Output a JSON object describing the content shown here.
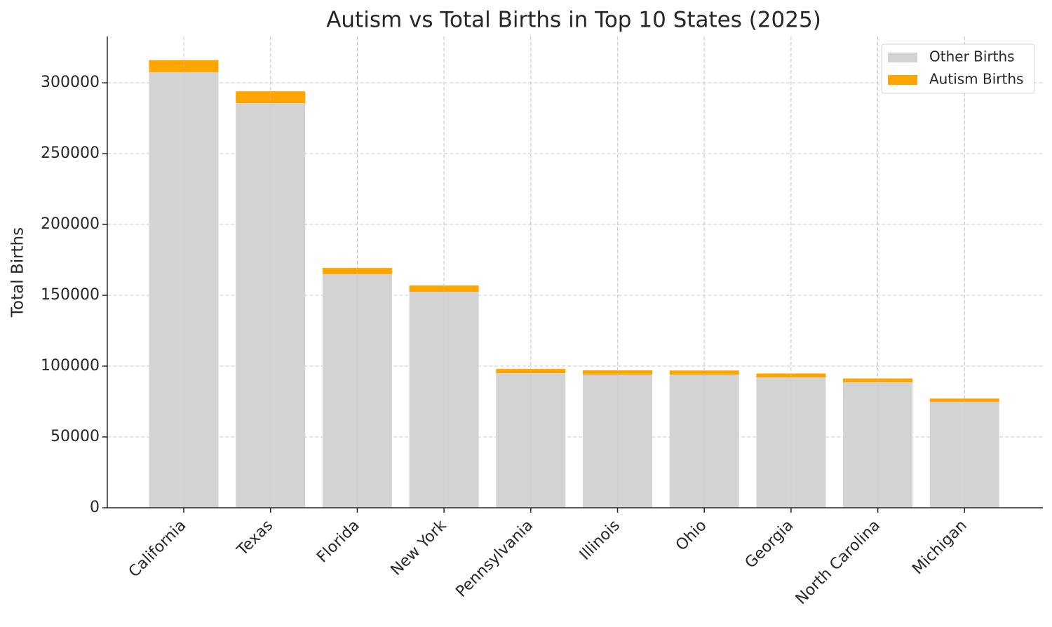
{
  "chart_data": {
    "type": "stacked_bar",
    "title": "Autism vs Total Births in Top 10 States (2025)",
    "y_label": "Total Births",
    "categories": [
      "California",
      "Texas",
      "Florida",
      "New York",
      "Pennsylvania",
      "Illinois",
      "Ohio",
      "Georgia",
      "North Carolina",
      "Michigan"
    ],
    "series": [
      {
        "name": "Other Births",
        "color": "#d3d3d3",
        "values": [
          307500,
          285600,
          164900,
          152500,
          95000,
          94000,
          94000,
          92000,
          88600,
          74800
        ]
      },
      {
        "name": "Autism Births",
        "color": "#ffa500",
        "values": [
          8500,
          8400,
          4400,
          4400,
          3000,
          3000,
          2900,
          2800,
          2700,
          2300
        ]
      }
    ],
    "ylim": [
      0,
      332700
    ],
    "yticks": [
      0,
      50000,
      100000,
      150000,
      200000,
      250000,
      300000
    ],
    "grid": true,
    "legend": "upper right"
  }
}
